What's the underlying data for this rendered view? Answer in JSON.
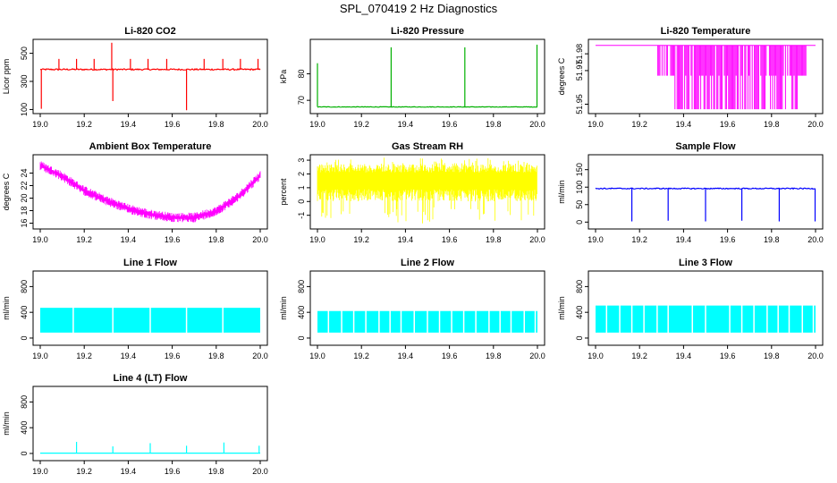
{
  "title": "SPL_070419  2 Hz Diagnostics",
  "chart_data": [
    {
      "type": "line",
      "title": "Li-820 CO2",
      "ylabel": "Licor ppm",
      "xlim": [
        19.0,
        20.0
      ],
      "ylim": [
        90,
        580
      ],
      "yticks": [
        100,
        300,
        500
      ],
      "xticks": [
        19.0,
        19.2,
        19.4,
        19.6,
        19.8,
        20.0
      ],
      "color": "#ff0000",
      "series": [
        {
          "baseline": 385,
          "noise": 10,
          "spikes": [
            {
              "x": 19.005,
              "y": 105
            },
            {
              "x": 19.085,
              "y": 460
            },
            {
              "x": 19.165,
              "y": 460
            },
            {
              "x": 19.245,
              "y": 460
            },
            {
              "x": 19.325,
              "y": 575
            },
            {
              "x": 19.33,
              "y": 160
            },
            {
              "x": 19.41,
              "y": 460
            },
            {
              "x": 19.49,
              "y": 460
            },
            {
              "x": 19.575,
              "y": 460
            },
            {
              "x": 19.665,
              "y": 95
            },
            {
              "x": 19.745,
              "y": 460
            },
            {
              "x": 19.83,
              "y": 460
            },
            {
              "x": 19.91,
              "y": 460
            },
            {
              "x": 19.99,
              "y": 460
            }
          ]
        }
      ]
    },
    {
      "type": "line",
      "title": "Li-820 Pressure",
      "ylabel": "kPa",
      "xlim": [
        19.0,
        20.0
      ],
      "ylim": [
        66,
        92
      ],
      "yticks": [
        70,
        80
      ],
      "xticks": [
        19.0,
        19.2,
        19.4,
        19.6,
        19.8,
        20.0
      ],
      "color": "#00b000",
      "series": [
        {
          "baseline": 67.5,
          "noise": 0.2,
          "spikes": [
            {
              "x": 19.0,
              "y": 84
            },
            {
              "x": 19.335,
              "y": 90
            },
            {
              "x": 19.67,
              "y": 90
            },
            {
              "x": 19.998,
              "y": 91
            }
          ]
        }
      ]
    },
    {
      "type": "line",
      "title": "Li-820 Temperature",
      "ylabel": "degrees C",
      "xlim": [
        19.0,
        20.0
      ],
      "ylim": [
        51.946,
        51.987
      ],
      "yticks": [
        51.95,
        51.97,
        51.98
      ],
      "yticklabels": [
        "51.95",
        "51.97",
        "51.98"
      ],
      "xticks": [
        19.0,
        19.2,
        19.4,
        19.6,
        19.8,
        20.0
      ],
      "color": "#ff00ff",
      "series": [
        {
          "upper": 51.985,
          "lower": 51.947,
          "mid": 51.967,
          "band_start": 19.28,
          "band_end": 19.96
        }
      ]
    },
    {
      "type": "line",
      "title": "Ambient Box Temperature",
      "ylabel": "degrees C",
      "xlim": [
        19.0,
        20.0
      ],
      "ylim": [
        15.5,
        26.5
      ],
      "yticks": [
        16,
        18,
        20,
        22,
        24
      ],
      "xticks": [
        19.0,
        19.2,
        19.4,
        19.6,
        19.8,
        20.0
      ],
      "color": "#ff00ff",
      "series": [
        {
          "points": [
            [
              19.0,
              25.2
            ],
            [
              19.1,
              23.5
            ],
            [
              19.2,
              21.2
            ],
            [
              19.3,
              19.6
            ],
            [
              19.4,
              18.3
            ],
            [
              19.5,
              17.4
            ],
            [
              19.6,
              16.9
            ],
            [
              19.7,
              16.9
            ],
            [
              19.8,
              17.9
            ],
            [
              19.9,
              20.2
            ],
            [
              20.0,
              23.6
            ]
          ],
          "noise": 0.6
        }
      ]
    },
    {
      "type": "line",
      "title": "Gas Stream RH",
      "ylabel": "percent",
      "xlim": [
        19.0,
        20.0
      ],
      "ylim": [
        -1.8,
        3.2
      ],
      "yticks": [
        -1,
        0,
        1,
        2,
        3
      ],
      "xticks": [
        19.0,
        19.2,
        19.4,
        19.6,
        19.8,
        20.0
      ],
      "color": "#ffff00",
      "series": [
        {
          "baseline": 1.6,
          "upper": 2.7,
          "lower": 0.0,
          "min": -1.6
        }
      ]
    },
    {
      "type": "line",
      "title": "Sample Flow",
      "ylabel": "ml/min",
      "xlim": [
        19.0,
        20.0
      ],
      "ylim": [
        -12,
        185
      ],
      "yticks": [
        0,
        50,
        100,
        150
      ],
      "xticks": [
        19.0,
        19.2,
        19.4,
        19.6,
        19.8,
        20.0
      ],
      "color": "#0000ff",
      "series": [
        {
          "baseline": 96,
          "noise": 3,
          "dips": [
            {
              "x": 19.165,
              "y": 2
            },
            {
              "x": 19.33,
              "y": 4
            },
            {
              "x": 19.5,
              "y": 2
            },
            {
              "x": 19.665,
              "y": 4
            },
            {
              "x": 19.835,
              "y": 2
            },
            {
              "x": 19.998,
              "y": 2
            }
          ]
        }
      ]
    },
    {
      "type": "line",
      "title": "Line 1 Flow",
      "ylabel": "ml/min",
      "xlim": [
        19.0,
        20.0
      ],
      "ylim": [
        -70,
        1000
      ],
      "yticks": [
        0,
        400,
        800
      ],
      "xticks": [
        19.0,
        19.2,
        19.4,
        19.6,
        19.8,
        20.0
      ],
      "color": "#00ffff",
      "series": [
        {
          "upper": 470,
          "lower": 85,
          "gaps": [
            19.15,
            19.33,
            19.5,
            19.665,
            19.83
          ]
        }
      ]
    },
    {
      "type": "line",
      "title": "Line 2 Flow",
      "ylabel": "ml/min",
      "xlim": [
        19.0,
        20.0
      ],
      "ylim": [
        -70,
        1000
      ],
      "yticks": [
        0,
        400,
        800
      ],
      "xticks": [
        19.0,
        19.2,
        19.4,
        19.6,
        19.8,
        20.0
      ],
      "color": "#00ffff",
      "series": [
        {
          "upper": 420,
          "lower": 85,
          "gaps": [
            19.05,
            19.11,
            19.165,
            19.22,
            19.28,
            19.33,
            19.38,
            19.44,
            19.5,
            19.555,
            19.61,
            19.665,
            19.72,
            19.78,
            19.83,
            19.88,
            19.94,
            19.99
          ]
        }
      ]
    },
    {
      "type": "line",
      "title": "Line 3 Flow",
      "ylabel": "ml/min",
      "xlim": [
        19.0,
        20.0
      ],
      "ylim": [
        -70,
        1000
      ],
      "yticks": [
        0,
        400,
        800
      ],
      "xticks": [
        19.0,
        19.2,
        19.4,
        19.6,
        19.8,
        20.0
      ],
      "color": "#00ffff",
      "series": [
        {
          "upper": 505,
          "lower": 85,
          "gaps": [
            19.05,
            19.11,
            19.165,
            19.22,
            19.28,
            19.33,
            19.44,
            19.5,
            19.61,
            19.665,
            19.72,
            19.78,
            19.83,
            19.88,
            19.94,
            19.99
          ]
        }
      ]
    },
    {
      "type": "line",
      "title": "Line 4 (LT) Flow",
      "ylabel": "ml/min",
      "xlim": [
        19.0,
        20.0
      ],
      "ylim": [
        -70,
        1000
      ],
      "yticks": [
        0,
        400,
        800
      ],
      "xticks": [
        19.0,
        19.2,
        19.4,
        19.6,
        19.8,
        20.0
      ],
      "color": "#00ffff",
      "series": [
        {
          "baseline": 5,
          "spikes": [
            {
              "x": 19.165,
              "y": 180
            },
            {
              "x": 19.33,
              "y": 110
            },
            {
              "x": 19.5,
              "y": 160
            },
            {
              "x": 19.665,
              "y": 120
            },
            {
              "x": 19.835,
              "y": 170
            },
            {
              "x": 19.995,
              "y": 120
            }
          ]
        }
      ]
    }
  ]
}
